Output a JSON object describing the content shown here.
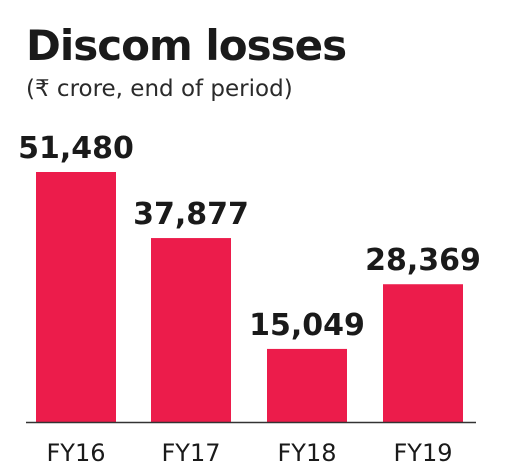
{
  "chart_data": {
    "type": "bar",
    "title": "Discom losses",
    "subtitle": "(₹ crore, end of period)",
    "categories": [
      "FY16",
      "FY17",
      "FY18",
      "FY19"
    ],
    "values": [
      51480,
      37877,
      15049,
      28369
    ],
    "value_labels": [
      "51,480",
      "37,877",
      "15,049",
      "28,369"
    ],
    "xlabel": "",
    "ylabel": "",
    "ylim": [
      0,
      51480
    ],
    "grid": false,
    "legend": "none",
    "colors": {
      "bar": "#ec1c4b",
      "axis": "#333333",
      "text": "#1a1a1a"
    }
  }
}
